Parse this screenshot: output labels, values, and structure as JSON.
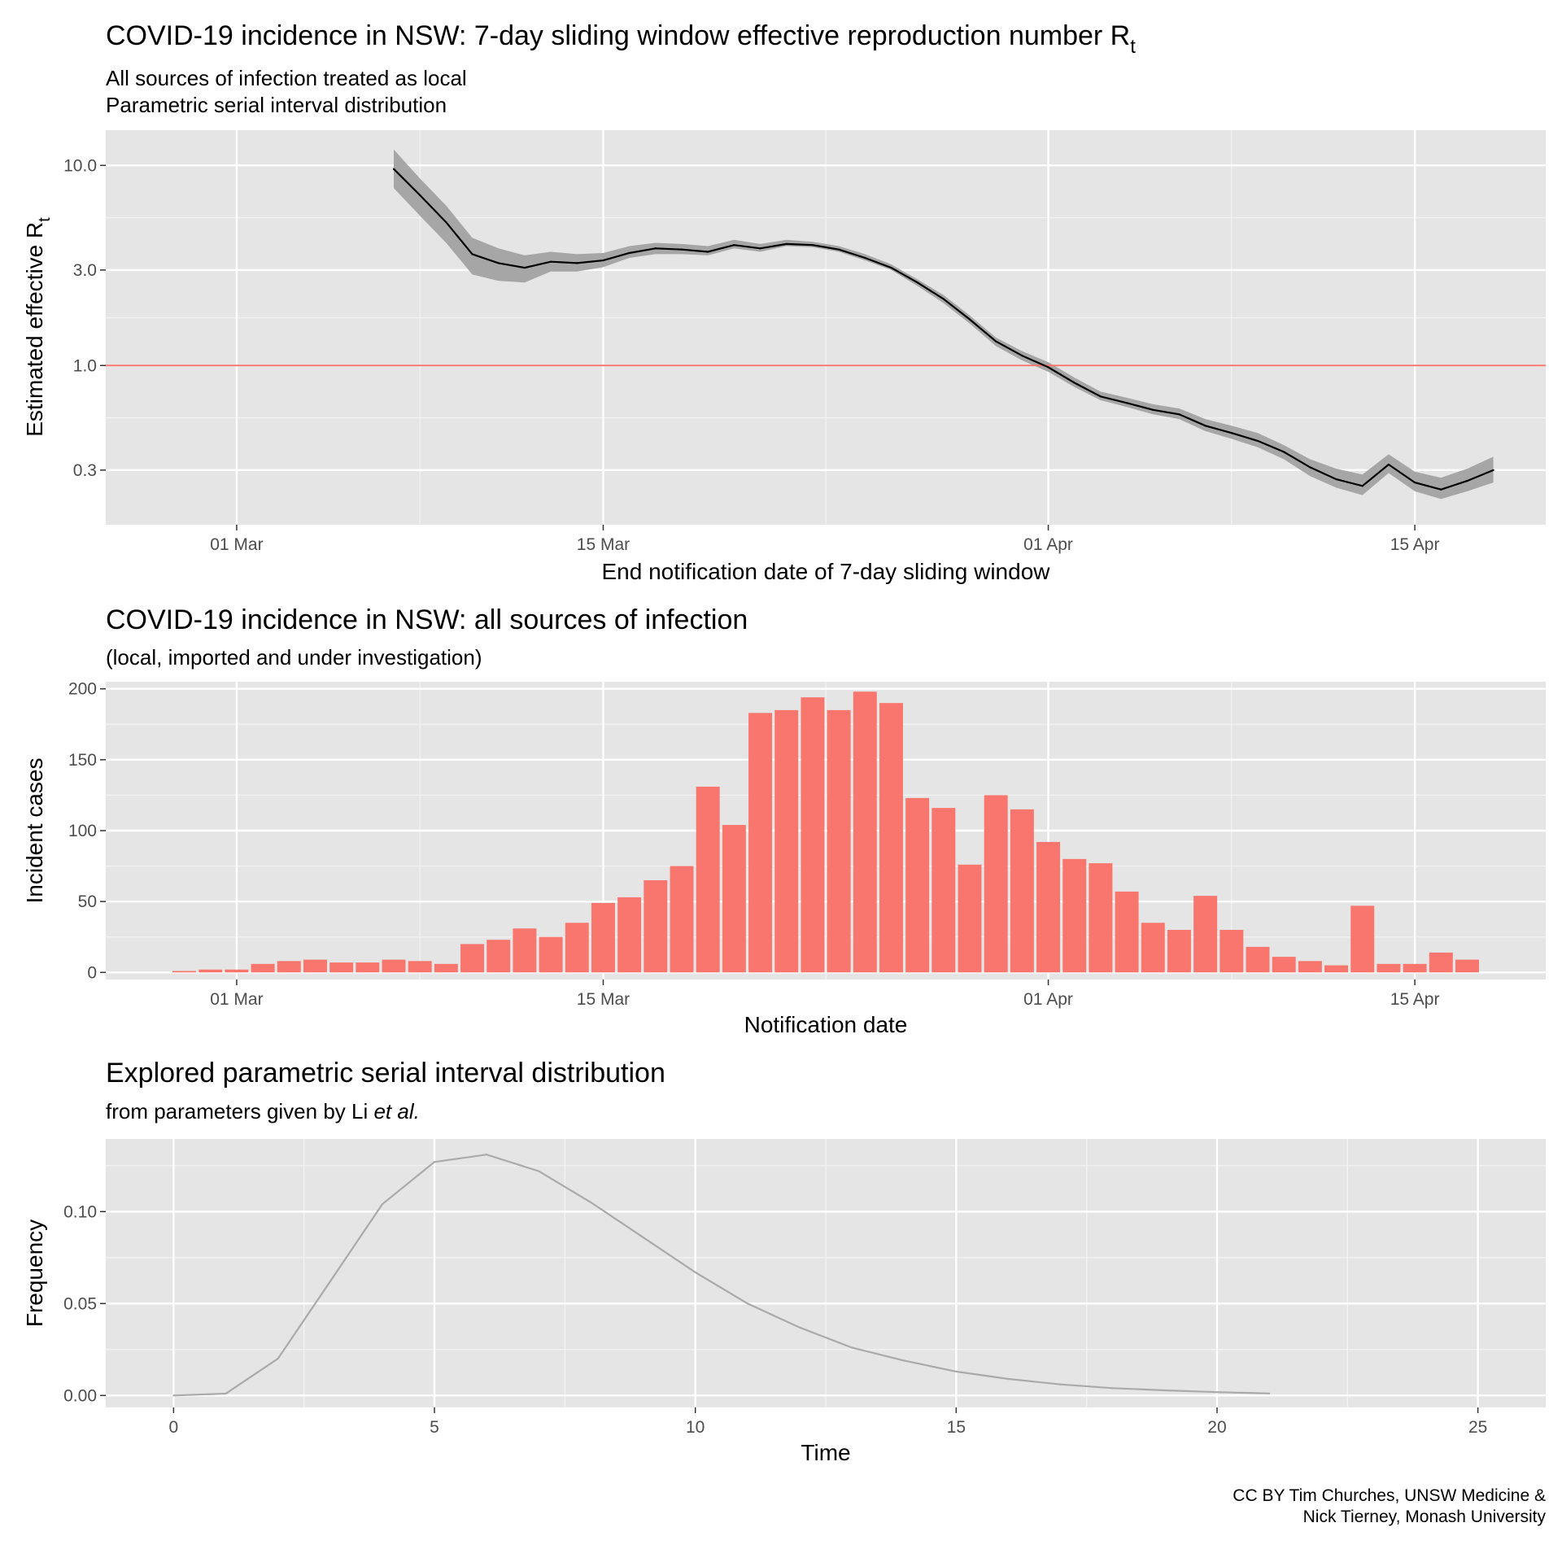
{
  "caption": [
    "CC BY Tim Churches, UNSW Medicine &",
    "Nick Tierney, Monash University"
  ],
  "chart_data": [
    {
      "type": "line",
      "title": "COVID-19 incidence in NSW: 7-day sliding window effective reproduction number R",
      "title_subscript": "t",
      "subtitle": [
        "All sources of infection treated as local",
        "Parametric serial interval distribution"
      ],
      "xlabel": "End notification date of 7-day sliding window",
      "ylabel": "Estimated effective R",
      "ylabel_subscript": "t",
      "y_scale": "log10",
      "ylim": [
        0.16,
        15.0
      ],
      "xlim": [
        "2020-02-25",
        "2020-04-20"
      ],
      "x_ticks": [
        {
          "date": "2020-03-01",
          "label": "01 Mar"
        },
        {
          "date": "2020-03-15",
          "label": "15 Mar"
        },
        {
          "date": "2020-04-01",
          "label": "01 Apr"
        },
        {
          "date": "2020-04-15",
          "label": "15 Apr"
        }
      ],
      "y_ticks": [
        {
          "value": 0.3,
          "label": "0.3"
        },
        {
          "value": 1.0,
          "label": "1.0"
        },
        {
          "value": 3.0,
          "label": "3.0"
        },
        {
          "value": 10.0,
          "label": "10.0"
        }
      ],
      "reference_line": {
        "y": 1.0,
        "color": "#f8766d"
      },
      "ribbon_color": "#a6a6a6",
      "line_color": "#000000",
      "series": [
        {
          "x": [
            "2020-03-07",
            "2020-03-08",
            "2020-03-09",
            "2020-03-10",
            "2020-03-11",
            "2020-03-12",
            "2020-03-13",
            "2020-03-14",
            "2020-03-15",
            "2020-03-16",
            "2020-03-17",
            "2020-03-18",
            "2020-03-19",
            "2020-03-20",
            "2020-03-21",
            "2020-03-22",
            "2020-03-23",
            "2020-03-24",
            "2020-03-25",
            "2020-03-26",
            "2020-03-27",
            "2020-03-28",
            "2020-03-29",
            "2020-03-30",
            "2020-03-31",
            "2020-04-01",
            "2020-04-02",
            "2020-04-03",
            "2020-04-04",
            "2020-04-05",
            "2020-04-06",
            "2020-04-07",
            "2020-04-08",
            "2020-04-09",
            "2020-04-10",
            "2020-04-11",
            "2020-04-12",
            "2020-04-13",
            "2020-04-14",
            "2020-04-15",
            "2020-04-16",
            "2020-04-17",
            "2020-04-18"
          ],
          "mean": [
            9.6,
            7.1,
            5.2,
            3.6,
            3.25,
            3.08,
            3.3,
            3.25,
            3.35,
            3.65,
            3.85,
            3.8,
            3.7,
            4.0,
            3.85,
            4.05,
            4.0,
            3.8,
            3.45,
            3.08,
            2.6,
            2.15,
            1.7,
            1.32,
            1.12,
            0.98,
            0.82,
            0.7,
            0.65,
            0.6,
            0.57,
            0.5,
            0.46,
            0.42,
            0.37,
            0.31,
            0.27,
            0.25,
            0.32,
            0.26,
            0.24,
            0.265,
            0.3
          ],
          "lower": [
            7.7,
            5.6,
            4.1,
            2.85,
            2.65,
            2.6,
            2.95,
            2.95,
            3.1,
            3.45,
            3.6,
            3.6,
            3.55,
            3.85,
            3.7,
            3.95,
            3.9,
            3.7,
            3.35,
            3.0,
            2.5,
            2.05,
            1.62,
            1.25,
            1.06,
            0.93,
            0.78,
            0.67,
            0.62,
            0.57,
            0.54,
            0.47,
            0.43,
            0.39,
            0.34,
            0.28,
            0.245,
            0.225,
            0.29,
            0.235,
            0.215,
            0.235,
            0.26
          ],
          "upper": [
            12.0,
            8.6,
            6.3,
            4.35,
            3.85,
            3.55,
            3.7,
            3.6,
            3.65,
            3.95,
            4.1,
            4.05,
            3.95,
            4.25,
            4.05,
            4.25,
            4.15,
            3.95,
            3.6,
            3.2,
            2.7,
            2.25,
            1.78,
            1.38,
            1.18,
            1.04,
            0.87,
            0.74,
            0.69,
            0.64,
            0.61,
            0.54,
            0.5,
            0.46,
            0.4,
            0.34,
            0.305,
            0.285,
            0.36,
            0.295,
            0.275,
            0.305,
            0.35
          ]
        }
      ]
    },
    {
      "type": "bar",
      "title": "COVID-19 incidence in NSW: all sources of infection",
      "subtitle": "(local, imported and under investigation)",
      "xlabel": "Notification date",
      "ylabel": "Incident cases",
      "ylim": [
        -5,
        205
      ],
      "xlim": [
        "2020-02-25",
        "2020-04-20"
      ],
      "bar_color": "#f8766d",
      "x_ticks": [
        {
          "date": "2020-03-01",
          "label": "01 Mar"
        },
        {
          "date": "2020-03-15",
          "label": "15 Mar"
        },
        {
          "date": "2020-04-01",
          "label": "01 Apr"
        },
        {
          "date": "2020-04-15",
          "label": "15 Apr"
        }
      ],
      "y_ticks": [
        {
          "value": 0,
          "label": "0"
        },
        {
          "value": 50,
          "label": "50"
        },
        {
          "value": 100,
          "label": "100"
        },
        {
          "value": 150,
          "label": "150"
        },
        {
          "value": 200,
          "label": "200"
        }
      ],
      "categories": [
        "2020-02-28",
        "2020-02-29",
        "2020-03-01",
        "2020-03-02",
        "2020-03-03",
        "2020-03-04",
        "2020-03-05",
        "2020-03-06",
        "2020-03-07",
        "2020-03-08",
        "2020-03-09",
        "2020-03-10",
        "2020-03-11",
        "2020-03-12",
        "2020-03-13",
        "2020-03-14",
        "2020-03-15",
        "2020-03-16",
        "2020-03-17",
        "2020-03-18",
        "2020-03-19",
        "2020-03-20",
        "2020-03-21",
        "2020-03-22",
        "2020-03-23",
        "2020-03-24",
        "2020-03-25",
        "2020-03-26",
        "2020-03-27",
        "2020-03-28",
        "2020-03-29",
        "2020-03-30",
        "2020-03-31",
        "2020-04-01",
        "2020-04-02",
        "2020-04-03",
        "2020-04-04",
        "2020-04-05",
        "2020-04-06",
        "2020-04-07",
        "2020-04-08",
        "2020-04-09",
        "2020-04-10",
        "2020-04-11",
        "2020-04-12",
        "2020-04-13",
        "2020-04-14",
        "2020-04-15",
        "2020-04-16",
        "2020-04-17",
        "2020-04-18"
      ],
      "values": [
        1,
        2,
        2,
        6,
        8,
        9,
        7,
        7,
        9,
        8,
        6,
        20,
        23,
        31,
        25,
        35,
        49,
        53,
        65,
        75,
        131,
        104,
        183,
        185,
        194,
        185,
        198,
        190,
        123,
        116,
        76,
        125,
        115,
        92,
        80,
        77,
        57,
        35,
        30,
        54,
        30,
        18,
        11,
        8,
        5,
        47,
        6,
        6,
        14,
        9,
        0
      ]
    },
    {
      "type": "line",
      "title": "Explored parametric serial interval distribution",
      "subtitle": "from parameters given by Li ",
      "subtitle_italic": "et al.",
      "xlabel": "Time",
      "ylabel": "Frequency",
      "xlim": [
        -1.3,
        26.3
      ],
      "ylim": [
        -0.0065,
        0.1395
      ],
      "line_color": "#aaaaaa",
      "x_ticks": [
        0,
        5,
        10,
        15,
        20,
        25
      ],
      "y_ticks": [
        {
          "value": 0.0,
          "label": "0.00"
        },
        {
          "value": 0.05,
          "label": "0.05"
        },
        {
          "value": 0.1,
          "label": "0.10"
        }
      ],
      "x": [
        0,
        1,
        2,
        3,
        4,
        5,
        6,
        7,
        8,
        9,
        10,
        11,
        12,
        13,
        14,
        15,
        16,
        17,
        18,
        19,
        20,
        21
      ],
      "values": [
        0.0,
        0.001,
        0.02,
        0.062,
        0.104,
        0.127,
        0.131,
        0.122,
        0.105,
        0.086,
        0.067,
        0.05,
        0.037,
        0.026,
        0.019,
        0.013,
        0.009,
        0.006,
        0.004,
        0.0028,
        0.0018,
        0.0011
      ]
    }
  ]
}
